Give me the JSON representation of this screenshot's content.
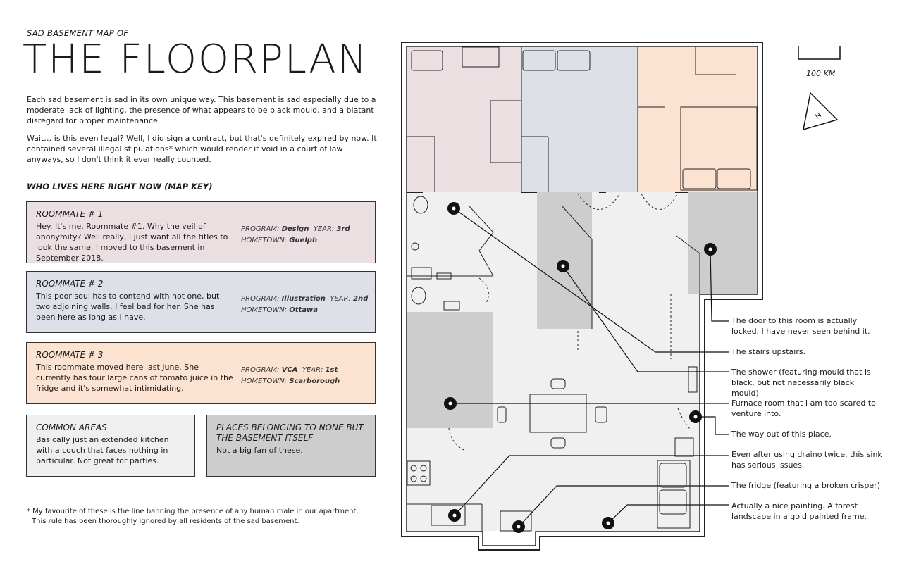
{
  "header": {
    "kicker": "SAD BASEMENT MAP OF",
    "title": "THE FLOORPLAN"
  },
  "intro": {
    "p1": "Each sad basement is sad in its own unique way. This basement is sad especially due to a moderate lack of lighting, the presence of what appears to be black mould, and a blatant disregard for proper maintenance.",
    "p2": "Wait… is this even legal? Well, I did sign a contract, but that's definitely expired by now. It contained several illegal stipulations* which would render it void in a court of law anyways, so I don't think it ever really counted."
  },
  "map_key": {
    "heading": "WHO LIVES HERE RIGHT NOW (MAP KEY)",
    "program_label": "PROGRAM:",
    "year_label": "YEAR:",
    "hometown_label": "HOMETOWN:",
    "roommates": [
      {
        "title": "ROOMMATE # 1",
        "text": "Hey. It's me. Roommate #1. Why the veil of anonymity? Well really, I just want all the titles to look the same. I moved to this basement in September 2018.",
        "program": "Design",
        "year": "3rd",
        "hometown": "Guelph",
        "color": "#ecdfe2"
      },
      {
        "title": "ROOMMATE # 2",
        "text": "This poor soul has to contend with not one, but two adjoining walls. I feel bad for her. She has been here as long as I have.",
        "program": "Illustration",
        "year": "2nd",
        "hometown": "Ottawa",
        "color": "#dde0e7"
      },
      {
        "title": "ROOMMATE # 3",
        "text": "This roommate moved here last June. She currently has four large cans of tomato juice in the fridge and it's somewhat intimidating.",
        "program": "VCA",
        "year": "1st",
        "hometown": "Scarborough",
        "color": "#fce3d1"
      }
    ],
    "common": {
      "title": "COMMON AREAS",
      "text": "Basically just an extended kitchen with a couch that faces nothing in particular. Not great for parties.",
      "color": "#efefef"
    },
    "none": {
      "title": "PLACES BELONGING TO NONE BUT THE BASEMENT ITSELF",
      "text": "Not a big fan of these.",
      "color": "#cdcdcd"
    }
  },
  "footnote": {
    "line1": "* My favourite of these is the line banning the presence of any human male in our apartment.",
    "line2": "This rule has been thoroughly ignored by all residents of the sad basement."
  },
  "map": {
    "scale_label": "100 KM",
    "north_label": "N",
    "annotations": [
      {
        "text": "The door to this room is actually locked. I have never seen behind it."
      },
      {
        "text": "The stairs upstairs."
      },
      {
        "text": "The shower (featuring mould that is black, but not necessarily black mould)"
      },
      {
        "text": "Furnace room that I am too scared to venture into."
      },
      {
        "text": "The way out of this place."
      },
      {
        "text": "Even after using draino twice, this sink has serious issues."
      },
      {
        "text": "The fridge (featuring a broken crisper)"
      },
      {
        "text": "Actually a nice painting. A forest landscape in a gold painted frame."
      }
    ]
  }
}
